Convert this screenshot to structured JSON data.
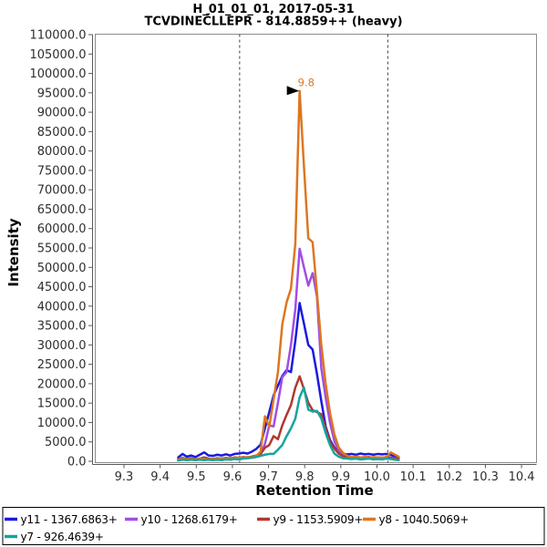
{
  "title": {
    "line1": "H_01_01_01, 2017-05-31",
    "line2": "TCVDINEC̄LLEPR - 814.8859++ (heavy)"
  },
  "axes": {
    "x": {
      "label": "Retention Time",
      "min": 9.2205,
      "max": 10.4415,
      "ticks": [
        9.3,
        9.4,
        9.5,
        9.6,
        9.7,
        9.8,
        9.9,
        10.0,
        10.1,
        10.2,
        10.3,
        10.4
      ]
    },
    "y": {
      "label": "Intensity",
      "min": 0,
      "max": 110000,
      "tick_step": 5000
    }
  },
  "boundaries": [
    9.62,
    10.03
  ],
  "annotation": {
    "text": "9.8",
    "rt": 9.786,
    "intensity": 95500
  },
  "chart_data": {
    "type": "line",
    "title": "TCVDINECLLEPR - 814.8859++ (heavy)",
    "xlabel": "Retention Time",
    "ylabel": "Intensity",
    "xlim": [
      9.2205,
      10.4415
    ],
    "ylim": [
      0,
      110000
    ],
    "x": [
      9.45,
      9.462,
      9.474,
      9.486,
      9.498,
      9.51,
      9.522,
      9.534,
      9.546,
      9.558,
      9.57,
      9.582,
      9.594,
      9.606,
      9.618,
      9.63,
      9.642,
      9.654,
      9.666,
      9.678,
      9.69,
      9.702,
      9.714,
      9.726,
      9.738,
      9.75,
      9.762,
      9.774,
      9.786,
      9.798,
      9.81,
      9.822,
      9.834,
      9.846,
      9.858,
      9.87,
      9.882,
      9.894,
      9.906,
      9.918,
      9.93,
      9.942,
      9.954,
      9.966,
      9.978,
      9.99,
      10.002,
      10.014,
      10.026,
      10.038,
      10.05,
      10.06
    ],
    "series": [
      {
        "name": "y11 - 1367.6863+",
        "color": "#1a1ae0",
        "values": [
          1000,
          1900,
          1200,
          1500,
          1100,
          1700,
          2300,
          1500,
          1400,
          1700,
          1500,
          1800,
          1500,
          1900,
          2000,
          2200,
          2000,
          2500,
          3200,
          4300,
          8500,
          12700,
          17000,
          19500,
          22000,
          23500,
          23000,
          31000,
          40800,
          35500,
          30000,
          28800,
          22500,
          15500,
          9000,
          5500,
          3600,
          2400,
          1900,
          1800,
          1900,
          1700,
          2000,
          1800,
          1900,
          1700,
          1900,
          1800,
          1900,
          1700,
          1200,
          900
        ]
      },
      {
        "name": "y10 - 1268.6179+",
        "color": "#a24de6",
        "values": [
          400,
          800,
          500,
          700,
          400,
          600,
          900,
          600,
          500,
          700,
          600,
          800,
          600,
          900,
          800,
          1000,
          900,
          1100,
          1300,
          1800,
          4500,
          9250,
          9000,
          15100,
          21700,
          23000,
          30000,
          39200,
          54800,
          50000,
          45300,
          48500,
          42500,
          24000,
          16500,
          10000,
          5200,
          2800,
          1600,
          1200,
          1000,
          1100,
          900,
          1100,
          1000,
          900,
          1000,
          900,
          1100,
          1000,
          800,
          600
        ]
      },
      {
        "name": "y9 - 1153.5909+",
        "color": "#b03830",
        "values": [
          500,
          900,
          600,
          800,
          500,
          700,
          1000,
          700,
          600,
          800,
          700,
          900,
          700,
          1000,
          900,
          1100,
          1000,
          1200,
          1500,
          1900,
          3500,
          4200,
          6500,
          5700,
          9250,
          12000,
          14500,
          19000,
          21900,
          18600,
          15100,
          13150,
          12700,
          12100,
          8500,
          5000,
          3300,
          2000,
          1300,
          1100,
          1000,
          1100,
          900,
          1000,
          1100,
          900,
          1000,
          900,
          1000,
          900,
          700,
          500
        ]
      },
      {
        "name": "y8 - 1040.5069+",
        "color": "#dd7620",
        "values": [
          400,
          700,
          500,
          600,
          500,
          700,
          600,
          500,
          700,
          600,
          800,
          700,
          900,
          800,
          1000,
          900,
          1100,
          1000,
          1400,
          2500,
          11600,
          8900,
          16000,
          23000,
          35300,
          41000,
          44500,
          56000,
          95500,
          76000,
          57500,
          56500,
          43500,
          30000,
          20000,
          12500,
          7000,
          3600,
          2200,
          1400,
          1100,
          1200,
          1000,
          1100,
          900,
          1100,
          1000,
          900,
          1100,
          2300,
          1700,
          1200
        ]
      },
      {
        "name": "y7 - 926.4639+",
        "color": "#14a49c",
        "values": [
          200,
          400,
          300,
          400,
          300,
          400,
          300,
          400,
          300,
          400,
          300,
          500,
          400,
          600,
          500,
          700,
          800,
          900,
          1100,
          1400,
          1700,
          1900,
          1900,
          3000,
          4200,
          6500,
          8500,
          11000,
          16500,
          19000,
          13300,
          12800,
          13000,
          11000,
          7300,
          4200,
          2000,
          1200,
          800,
          700,
          600,
          700,
          500,
          600,
          700,
          500,
          600,
          500,
          700,
          600,
          400,
          300
        ]
      }
    ]
  }
}
